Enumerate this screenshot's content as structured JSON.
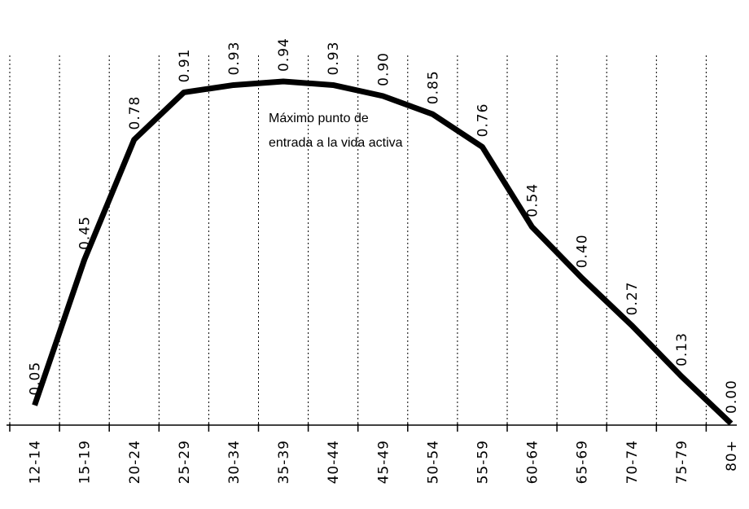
{
  "chart_data": {
    "type": "line",
    "categories": [
      "12-14",
      "15-19",
      "20-24",
      "25-29",
      "30-34",
      "35-39",
      "40-44",
      "45-49",
      "50-54",
      "55-59",
      "60-64",
      "65-69",
      "70-74",
      "75-79",
      "80+"
    ],
    "values": [
      0.05,
      0.45,
      0.78,
      0.91,
      0.93,
      0.94,
      0.93,
      0.9,
      0.85,
      0.76,
      0.54,
      0.4,
      0.27,
      0.13,
      0.0
    ],
    "value_labels": [
      "0.05",
      "0.45",
      "0.78",
      "0.91",
      "0.93",
      "0.94",
      "0.93",
      "0.90",
      "0.85",
      "0.76",
      "0.54",
      "0.40",
      "0.27",
      "0.13",
      "0.00"
    ],
    "color": "#000000",
    "annotation": [
      "Máximo punto de",
      "entrada a la vida activa"
    ]
  }
}
